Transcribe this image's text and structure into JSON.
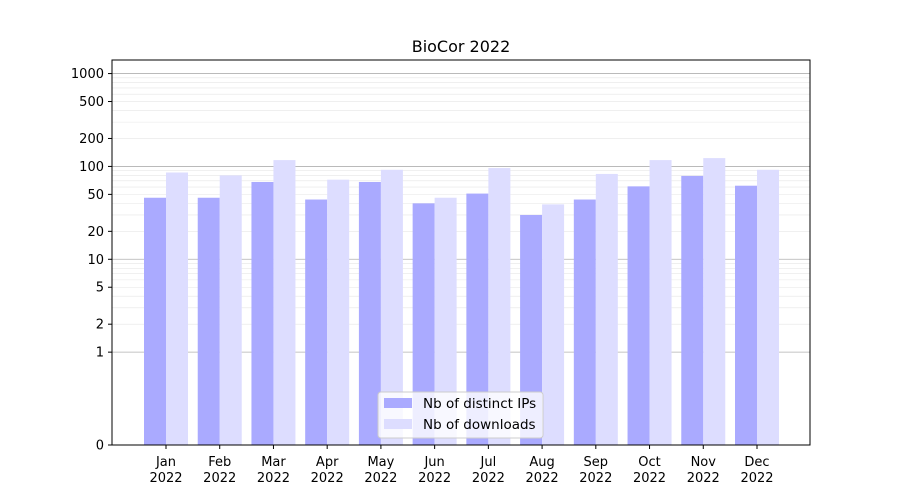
{
  "chart_data": {
    "type": "bar",
    "title": "BioCor 2022",
    "y_scale": "symlog",
    "yticks": [
      0,
      1,
      2,
      5,
      10,
      20,
      50,
      100,
      200,
      500,
      1000
    ],
    "ylim": [
      0,
      1400
    ],
    "categories": [
      "Jan\n2022",
      "Feb\n2022",
      "Mar\n2022",
      "Apr\n2022",
      "May\n2022",
      "Jun\n2022",
      "Jul\n2022",
      "Aug\n2022",
      "Sep\n2022",
      "Oct\n2022",
      "Nov\n2022",
      "Dec\n2022"
    ],
    "series": [
      {
        "name": "Nb of distinct IPs",
        "color": "#aaaaff",
        "values": [
          46,
          46,
          68,
          44,
          68,
          40,
          51,
          30,
          44,
          61,
          79,
          62
        ]
      },
      {
        "name": "Nb of downloads",
        "color": "#ddddff",
        "values": [
          86,
          80,
          117,
          72,
          92,
          46,
          96,
          39,
          83,
          117,
          123,
          92
        ]
      }
    ],
    "legend_position": "lower-center",
    "grid": true
  }
}
